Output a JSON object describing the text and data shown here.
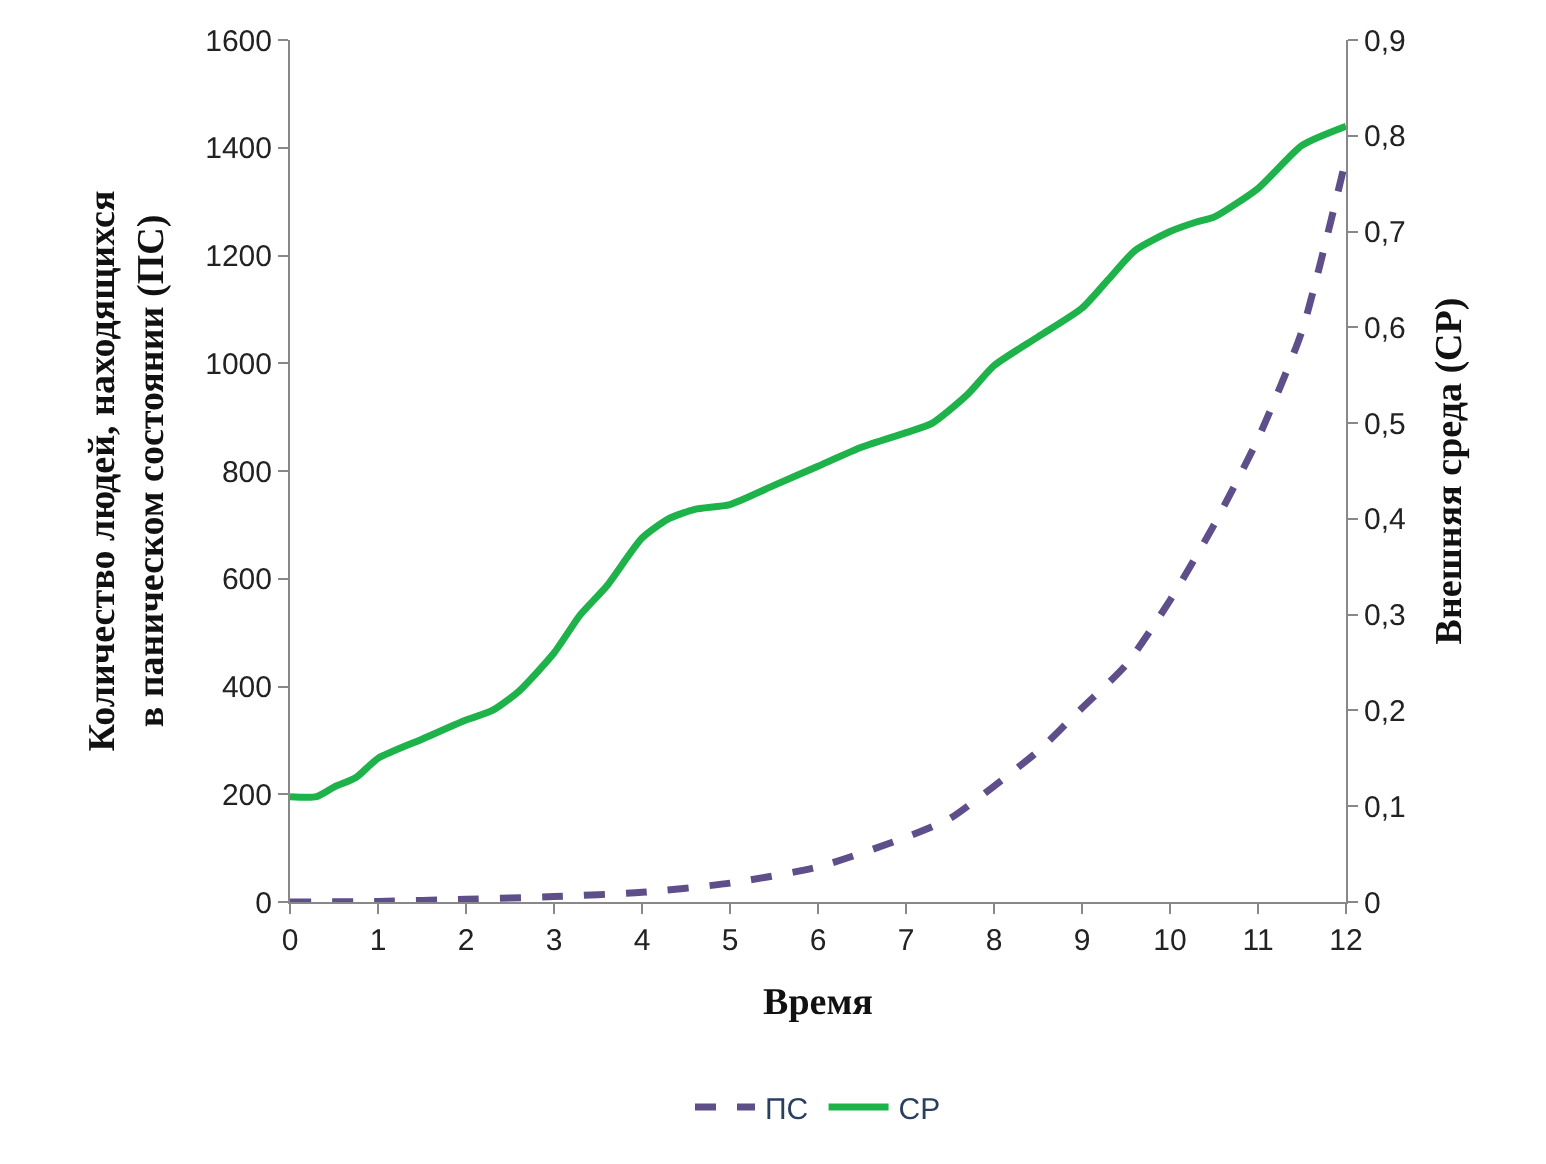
{
  "chart_data": {
    "type": "line",
    "xlabel": "Время",
    "ylabel": "Количество людей, находящихся в паническом состоянии (ПС)",
    "y2label": "Внешняя среда (СР)",
    "xlim": [
      0,
      12
    ],
    "xticks": [
      0,
      1,
      2,
      3,
      4,
      5,
      6,
      7,
      8,
      9,
      10,
      11,
      12
    ],
    "ylim": [
      0,
      1600
    ],
    "yticks": [
      0,
      200,
      400,
      600,
      800,
      1000,
      1200,
      1400,
      1600
    ],
    "y2lim": [
      0,
      0.9
    ],
    "y2ticks": [
      {
        "value": 0,
        "label": "0"
      },
      {
        "value": 0.1,
        "label": "0,1"
      },
      {
        "value": 0.2,
        "label": "0,2"
      },
      {
        "value": 0.3,
        "label": "0,3"
      },
      {
        "value": 0.4,
        "label": "0,4"
      },
      {
        "value": 0.5,
        "label": "0,5"
      },
      {
        "value": 0.6,
        "label": "0,6"
      },
      {
        "value": 0.7,
        "label": "0,7"
      },
      {
        "value": 0.8,
        "label": "0,8"
      },
      {
        "value": 0.9,
        "label": "0,9"
      }
    ],
    "legend": "bottom",
    "marker": "none",
    "series": [
      {
        "name": "ПС",
        "color": "#5e4f8a",
        "line_style": "dashed",
        "x": [
          0,
          1,
          2,
          3,
          4,
          5,
          6,
          7,
          7.5,
          8,
          8.5,
          9,
          9.5,
          10,
          10.5,
          11,
          11.5,
          12
        ],
        "values": [
          0,
          1,
          5,
          10,
          18,
          35,
          65,
          120,
          155,
          215,
          280,
          360,
          440,
          560,
          700,
          860,
          1060,
          1380
        ]
      },
      {
        "name": "СР",
        "color": "#1db34a",
        "line_style": "solid",
        "axis": "y2",
        "x": [
          0,
          0.3,
          0.5,
          0.75,
          1,
          1.5,
          2,
          2.3,
          2.6,
          3,
          3.3,
          3.6,
          4,
          4.3,
          4.6,
          5,
          5.5,
          6,
          6.5,
          7,
          7.3,
          7.7,
          8,
          8.5,
          9,
          9.3,
          9.6,
          10,
          10.3,
          10.5,
          11,
          11.5,
          12
        ],
        "values": [
          0.11,
          0.11,
          0.12,
          0.13,
          0.15,
          0.17,
          0.19,
          0.2,
          0.22,
          0.26,
          0.3,
          0.33,
          0.38,
          0.4,
          0.41,
          0.415,
          0.435,
          0.455,
          0.475,
          0.49,
          0.5,
          0.53,
          0.56,
          0.59,
          0.62,
          0.65,
          0.68,
          0.7,
          0.71,
          0.715,
          0.745,
          0.79,
          0.81
        ]
      }
    ]
  }
}
